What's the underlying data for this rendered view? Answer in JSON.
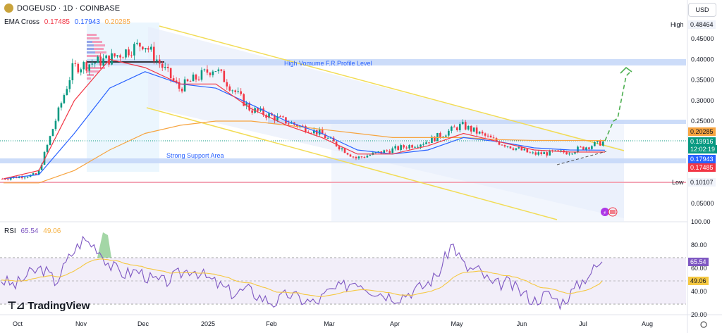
{
  "header": {
    "symbol": "DOGEUSD · 1D · COINBASE",
    "ema_label": "EMA Cross",
    "ema_values": [
      "0.17485",
      "0.17943",
      "0.20285"
    ],
    "rsi_label": "RSI",
    "rsi_values": [
      "65.54",
      "49.06"
    ]
  },
  "currency_button": "USD",
  "brand": "TradingView",
  "colors": {
    "up": "#089981",
    "down": "#f23645",
    "ema_fast": "#f23645",
    "ema_mid": "#2962ff",
    "ema_slow": "#f7a440",
    "rsi": "#7e57c2",
    "rsi_ma": "#f5c842",
    "channel": "#f5e05a"
  },
  "chart_data": {
    "type": "line",
    "title": "DOGEUSD · 1D · COINBASE",
    "x_ticks": [
      "Oct",
      "Nov",
      "Dec",
      "2025",
      "Feb",
      "Mar",
      "Apr",
      "May",
      "Jun",
      "Jul",
      "Aug"
    ],
    "price_axis": {
      "ticks": [
        "0.45000",
        "0.40000",
        "0.35000",
        "0.30000",
        "0.25000",
        "0.05000"
      ],
      "ylim": [
        0.02,
        0.5
      ]
    },
    "series": [
      {
        "name": "Close",
        "x": [
          "Oct",
          "Nov",
          "Nov",
          "Dec",
          "Dec",
          "2025",
          "2025",
          "Feb",
          "Feb",
          "Mar",
          "Apr",
          "Apr",
          "May",
          "May",
          "Jun",
          "Jun",
          "Jul",
          "Jul"
        ],
        "values": [
          0.11,
          0.12,
          0.38,
          0.4,
          0.44,
          0.33,
          0.38,
          0.28,
          0.25,
          0.22,
          0.16,
          0.18,
          0.2,
          0.24,
          0.2,
          0.17,
          0.175,
          0.19916
        ]
      },
      {
        "name": "EMA 9",
        "values": [
          0.11,
          0.13,
          0.3,
          0.4,
          0.38,
          0.34,
          0.34,
          0.28,
          0.24,
          0.21,
          0.17,
          0.17,
          0.19,
          0.22,
          0.2,
          0.18,
          0.175,
          0.17485
        ]
      },
      {
        "name": "EMA 21",
        "values": [
          0.11,
          0.12,
          0.22,
          0.33,
          0.37,
          0.34,
          0.33,
          0.29,
          0.25,
          0.22,
          0.18,
          0.17,
          0.18,
          0.21,
          0.2,
          0.185,
          0.18,
          0.17943
        ]
      },
      {
        "name": "EMA 200",
        "values": [
          0.1,
          0.1,
          0.13,
          0.18,
          0.22,
          0.24,
          0.25,
          0.25,
          0.24,
          0.23,
          0.22,
          0.21,
          0.21,
          0.21,
          0.205,
          0.203,
          0.203,
          0.20285
        ]
      }
    ],
    "price_labels": [
      {
        "text": "0.20285",
        "color": "#f7a440",
        "text_color": "#131722"
      },
      {
        "text": "0.19916",
        "color": "#089981",
        "text_color": "#ffffff"
      },
      {
        "text": "12:02:19",
        "color": "#089981",
        "text_color": "#ffffff"
      },
      {
        "text": "0.17943",
        "color": "#2962ff",
        "text_color": "#ffffff"
      },
      {
        "text": "0.17485",
        "color": "#f23645",
        "text_color": "#ffffff"
      }
    ],
    "high": {
      "label": "High",
      "value": "0.48464"
    },
    "low": {
      "label": "Low",
      "value": "0.10107"
    },
    "annotations": {
      "resistance_zone": "High Vomume F.R.Profile Level",
      "support_zone": "Strong Support Area"
    },
    "rsi": {
      "ticks": [
        "100.00",
        "80.00",
        "60.00",
        "40.00",
        "20.00"
      ],
      "ylim": [
        20,
        100
      ],
      "value": "65.54",
      "ma_value": "49.06",
      "levels": [
        70,
        50,
        30
      ]
    }
  }
}
